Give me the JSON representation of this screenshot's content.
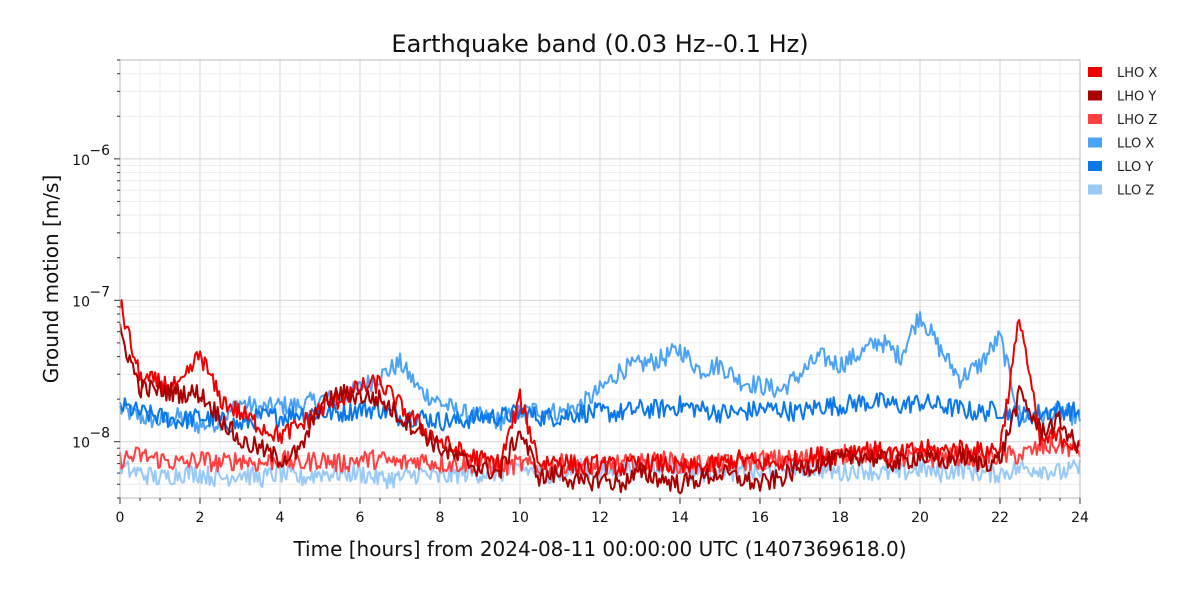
{
  "chart_data": {
    "type": "line",
    "title": "Earthquake band (0.03 Hz--0.1 Hz)",
    "xlabel": "Time [hours] from 2024-08-11 00:00:00 UTC (1407369618.0)",
    "ylabel": "Ground motion [m/s]",
    "xlim": [
      0,
      24
    ],
    "ylim": [
      4e-09,
      5e-06
    ],
    "yscale": "log",
    "grid": true,
    "legend_position": "outside-right",
    "x_ticks": [
      0,
      2,
      4,
      6,
      8,
      10,
      12,
      14,
      16,
      18,
      20,
      22,
      24
    ],
    "x_tick_labels": [
      "0",
      "2",
      "4",
      "6",
      "8",
      "10",
      "12",
      "14",
      "16",
      "18",
      "20",
      "22",
      "24"
    ],
    "y_ticks": [
      1e-08,
      1e-07,
      1e-06
    ],
    "y_tick_labels": [
      {
        "base": "10",
        "exp": "−8"
      },
      {
        "base": "10",
        "exp": "−7"
      },
      {
        "base": "10",
        "exp": "−6"
      }
    ],
    "x": [
      0,
      0.5,
      1,
      1.5,
      2,
      2.5,
      3,
      3.5,
      4,
      4.5,
      5,
      5.5,
      6,
      6.5,
      7,
      7.5,
      8,
      8.5,
      9,
      9.5,
      10,
      10.5,
      11,
      11.5,
      12,
      12.5,
      13,
      13.5,
      14,
      14.5,
      15,
      15.5,
      16,
      16.5,
      17,
      17.5,
      18,
      18.5,
      19,
      19.5,
      20,
      20.5,
      21,
      21.5,
      22,
      22.5,
      23,
      23.5,
      24
    ],
    "series": [
      {
        "name": "LHO X",
        "color": "#ee0000",
        "values": [
          9.5e-08,
          2.8e-08,
          2.6e-08,
          2.4e-08,
          4.2e-08,
          2e-08,
          1.6e-08,
          1.3e-08,
          1.1e-08,
          1.3e-08,
          1.7e-08,
          2e-08,
          2.4e-08,
          2.6e-08,
          1.8e-08,
          1.3e-08,
          1e-08,
          8.5e-09,
          7.5e-09,
          7e-09,
          2e-08,
          7e-09,
          7.5e-09,
          6.5e-09,
          7e-09,
          6.5e-09,
          7e-09,
          7e-09,
          6.5e-09,
          6.5e-09,
          7e-09,
          7.5e-09,
          7e-09,
          7e-09,
          7.5e-09,
          8e-09,
          8e-09,
          9e-09,
          8.5e-09,
          8e-09,
          9e-09,
          8.5e-09,
          9e-09,
          8.5e-09,
          9e-09,
          7.8e-08,
          1e-08,
          1.1e-08,
          9e-09
        ]
      },
      {
        "name": "LHO Y",
        "color": "#a80000",
        "values": [
          6e-08,
          2.4e-08,
          2.3e-08,
          2.2e-08,
          2.2e-08,
          1.5e-08,
          1e-08,
          9e-09,
          7.5e-09,
          8.5e-09,
          1.8e-08,
          2.2e-08,
          2.1e-08,
          2e-08,
          1.5e-08,
          1.2e-08,
          9e-09,
          7.5e-09,
          6.5e-09,
          6e-09,
          1.2e-08,
          5.5e-09,
          6e-09,
          5e-09,
          5.5e-09,
          5e-09,
          6e-09,
          5.5e-09,
          5e-09,
          5.5e-09,
          6e-09,
          5.5e-09,
          5e-09,
          5.5e-09,
          6.5e-09,
          7e-09,
          7.5e-09,
          8e-09,
          7.5e-09,
          7e-09,
          8e-09,
          7e-09,
          8e-09,
          7e-09,
          7.5e-09,
          2.2e-08,
          1.2e-08,
          1.4e-08,
          8.5e-09
        ]
      },
      {
        "name": "LHO Z",
        "color": "#ff4040",
        "values": [
          7.5e-09,
          8e-09,
          7.5e-09,
          7e-09,
          7.5e-09,
          7e-09,
          7.5e-09,
          7e-09,
          7.5e-09,
          7e-09,
          7.5e-09,
          7e-09,
          7.5e-09,
          7.5e-09,
          7e-09,
          7.5e-09,
          7e-09,
          7e-09,
          7e-09,
          6.5e-09,
          7e-09,
          6.5e-09,
          7e-09,
          7e-09,
          6.5e-09,
          7e-09,
          7e-09,
          7.5e-09,
          7e-09,
          7e-09,
          7e-09,
          7e-09,
          7.5e-09,
          7.5e-09,
          7.5e-09,
          8e-09,
          8e-09,
          8.5e-09,
          8e-09,
          7.5e-09,
          8e-09,
          7.5e-09,
          8e-09,
          7.5e-09,
          8e-09,
          8e-09,
          9e-09,
          9.5e-09,
          8.5e-09
        ]
      },
      {
        "name": "LLO X",
        "color": "#4ca3f5",
        "values": [
          1.7e-08,
          1.5e-08,
          1.4e-08,
          1.5e-08,
          1.3e-08,
          1.4e-08,
          1.9e-08,
          1.7e-08,
          1.8e-08,
          1.8e-08,
          2e-08,
          2e-08,
          2.4e-08,
          2.9e-08,
          3.6e-08,
          2.3e-08,
          1.9e-08,
          1.6e-08,
          1.5e-08,
          1.4e-08,
          1.6e-08,
          1.7e-08,
          1.6e-08,
          1.8e-08,
          2.3e-08,
          3.2e-08,
          3.5e-08,
          3.8e-08,
          4.5e-08,
          3.2e-08,
          3.5e-08,
          2.7e-08,
          2.5e-08,
          2.3e-08,
          3e-08,
          4e-08,
          3.5e-08,
          4.2e-08,
          5.2e-08,
          4e-08,
          8e-08,
          4.5e-08,
          2.8e-08,
          3.5e-08,
          5.5e-08,
          1.5e-08,
          1.5e-08,
          1.6e-08,
          1.5e-08
        ]
      },
      {
        "name": "LLO Y",
        "color": "#0a78e8",
        "values": [
          1.8e-08,
          1.6e-08,
          1.5e-08,
          1.4e-08,
          1.5e-08,
          1.4e-08,
          1.3e-08,
          1.5e-08,
          1.5e-08,
          1.6e-08,
          1.6e-08,
          1.6e-08,
          1.7e-08,
          1.7e-08,
          1.5e-08,
          1.5e-08,
          1.4e-08,
          1.4e-08,
          1.5e-08,
          1.5e-08,
          1.6e-08,
          1.5e-08,
          1.5e-08,
          1.6e-08,
          1.6e-08,
          1.6e-08,
          1.7e-08,
          1.7e-08,
          1.8e-08,
          1.7e-08,
          1.6e-08,
          1.6e-08,
          1.7e-08,
          1.7e-08,
          1.6e-08,
          1.8e-08,
          1.8e-08,
          1.9e-08,
          1.9e-08,
          1.8e-08,
          1.9e-08,
          1.8e-08,
          1.7e-08,
          1.6e-08,
          1.7e-08,
          1.5e-08,
          1.6e-08,
          1.7e-08,
          1.6e-08
        ]
      },
      {
        "name": "LLO Z",
        "color": "#99c9f7",
        "values": [
          6.5e-09,
          6e-09,
          5.5e-09,
          6e-09,
          6e-09,
          5.5e-09,
          6e-09,
          5.5e-09,
          6e-09,
          5.5e-09,
          6e-09,
          6e-09,
          6e-09,
          5.5e-09,
          5.5e-09,
          6e-09,
          5.5e-09,
          6e-09,
          6e-09,
          6e-09,
          6.5e-09,
          6e-09,
          6e-09,
          6.5e-09,
          6e-09,
          6.5e-09,
          6.5e-09,
          7e-09,
          6.5e-09,
          6e-09,
          6.5e-09,
          6e-09,
          6e-09,
          6.5e-09,
          6.5e-09,
          6.5e-09,
          6e-09,
          6.5e-09,
          6e-09,
          6e-09,
          6.5e-09,
          6e-09,
          6.5e-09,
          6e-09,
          6e-09,
          6.5e-09,
          6.5e-09,
          6e-09,
          6.5e-09
        ]
      }
    ]
  }
}
